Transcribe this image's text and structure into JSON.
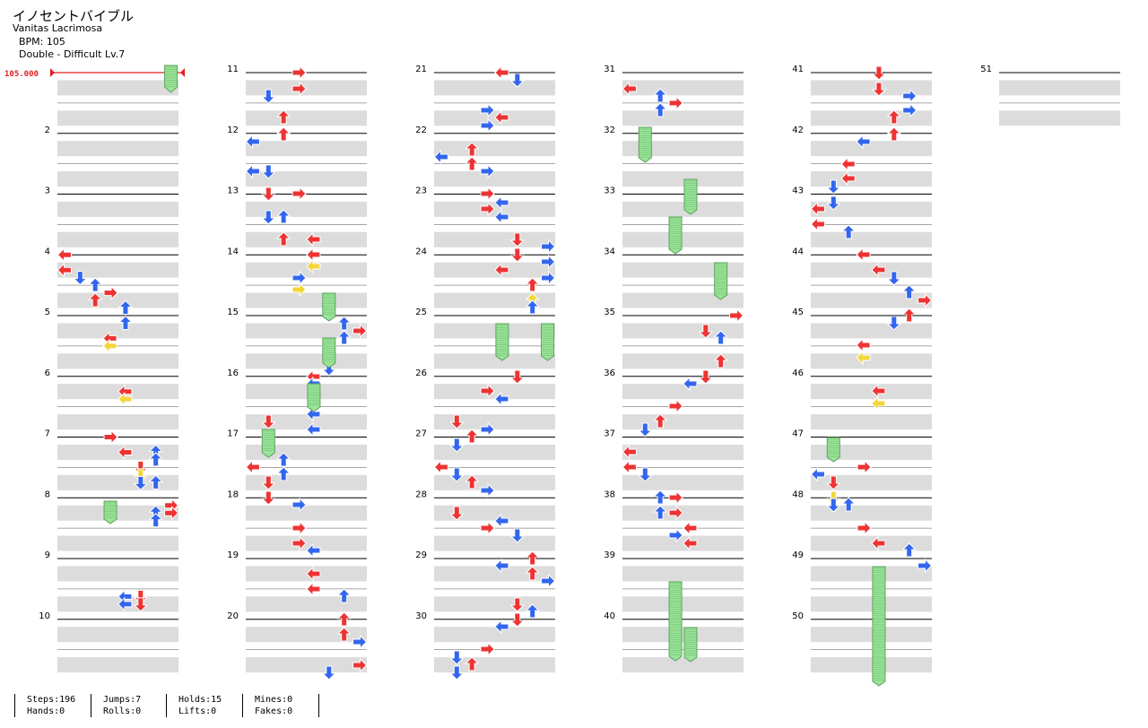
{
  "header": {
    "title": "イノセントバイブル",
    "artist": "Vanitas Lacrimosa",
    "bpm": "BPM: 105",
    "difficulty": "Double - Difficult Lv.7",
    "bpm_marker": "105.000"
  },
  "colors": {
    "red": "#ee3333",
    "blue": "#3366ee",
    "yellow": "#f2d63a",
    "hold": "#9be29b",
    "lane": "#dcdcdc"
  },
  "measure_labels": [
    "2",
    "3",
    "4",
    "5",
    "6",
    "7",
    "8",
    "9",
    "10",
    "11",
    "12",
    "13",
    "14",
    "15",
    "16",
    "17",
    "18",
    "19",
    "20",
    "21",
    "22",
    "23",
    "24",
    "25",
    "26",
    "27",
    "28",
    "29",
    "30",
    "31",
    "32",
    "33",
    "34",
    "35",
    "36",
    "37",
    "38",
    "39",
    "40",
    "41",
    "42",
    "43",
    "44",
    "45",
    "46",
    "47",
    "48",
    "49",
    "50",
    "51"
  ],
  "stats": {
    "steps": "Steps:196",
    "hands": "Hands:0",
    "jumps": "Jumps:7",
    "rolls": "Rolls:0",
    "holds": "Holds:15",
    "lifts": "Lifts:0",
    "mines": "Mines:0",
    "fakes": "Fakes:0"
  },
  "notes": [
    {
      "m": 1,
      "r": 0,
      "dir": "hold",
      "lane": 7
    },
    {
      "m": 4,
      "r": 0.0,
      "dir": "left",
      "lane": 0,
      "c": "red"
    },
    {
      "m": 4,
      "r": 0.25,
      "dir": "left",
      "lane": 0,
      "c": "red"
    },
    {
      "m": 4,
      "r": 0.375,
      "dir": "down",
      "lane": 1,
      "c": "blue"
    },
    {
      "m": 4,
      "r": 0.5,
      "dir": "up",
      "lane": 2,
      "c": "blue"
    },
    {
      "m": 4,
      "r": 0.625,
      "dir": "right",
      "lane": 3,
      "c": "red"
    },
    {
      "m": 4,
      "r": 0.75,
      "dir": "up",
      "lane": 2,
      "c": "red"
    },
    {
      "m": 4,
      "r": 0.875,
      "dir": "up",
      "lane": 4,
      "c": "blue"
    },
    {
      "m": 5,
      "r": 0.125,
      "dir": "up",
      "lane": 4,
      "c": "blue"
    },
    {
      "m": 5,
      "r": 0.375,
      "dir": "left",
      "lane": 3,
      "c": "red"
    },
    {
      "m": 5,
      "r": 0.5,
      "dir": "left",
      "lane": 3,
      "c": "yellow"
    },
    {
      "m": 6,
      "r": 0.25,
      "dir": "left",
      "lane": 4,
      "c": "red"
    },
    {
      "m": 6,
      "r": 0.375,
      "dir": "left",
      "lane": 4,
      "c": "yellow"
    },
    {
      "m": 7,
      "r": 0.0,
      "dir": "right",
      "lane": 3,
      "c": "red"
    },
    {
      "m": 7,
      "r": 0.25,
      "dir": "left",
      "lane": 4,
      "c": "red"
    },
    {
      "m": 7,
      "r": 0.25,
      "dir": "up",
      "lane": 6,
      "c": "blue"
    },
    {
      "m": 7,
      "r": 0.375,
      "dir": "up",
      "lane": 6,
      "c": "blue"
    },
    {
      "m": 7,
      "r": 0.5,
      "dir": "down",
      "lane": 5,
      "c": "red"
    },
    {
      "m": 7,
      "r": 0.625,
      "dir": "down",
      "lane": 5,
      "c": "yellow"
    },
    {
      "m": 7,
      "r": 0.75,
      "dir": "down",
      "lane": 5,
      "c": "blue"
    },
    {
      "m": 7,
      "r": 0.75,
      "dir": "up",
      "lane": 6,
      "c": "blue"
    },
    {
      "m": 8,
      "r": 0.125,
      "dir": "right",
      "lane": 7,
      "c": "red"
    },
    {
      "m": 8,
      "r": 0.25,
      "dir": "up",
      "lane": 6,
      "c": "blue"
    },
    {
      "m": 8,
      "r": 0.25,
      "dir": "right",
      "lane": 7,
      "c": "red"
    },
    {
      "m": 8,
      "r": 0.375,
      "dir": "up",
      "lane": 6,
      "c": "blue"
    },
    {
      "m": 9,
      "r": 0.625,
      "dir": "down",
      "lane": 5,
      "c": "red"
    },
    {
      "m": 9,
      "r": 0.625,
      "dir": "left",
      "lane": 4,
      "c": "blue"
    },
    {
      "m": 9,
      "r": 0.75,
      "dir": "down",
      "lane": 5,
      "c": "red"
    },
    {
      "m": 9,
      "r": 0.75,
      "dir": "left",
      "lane": 4,
      "c": "blue"
    }
  ]
}
